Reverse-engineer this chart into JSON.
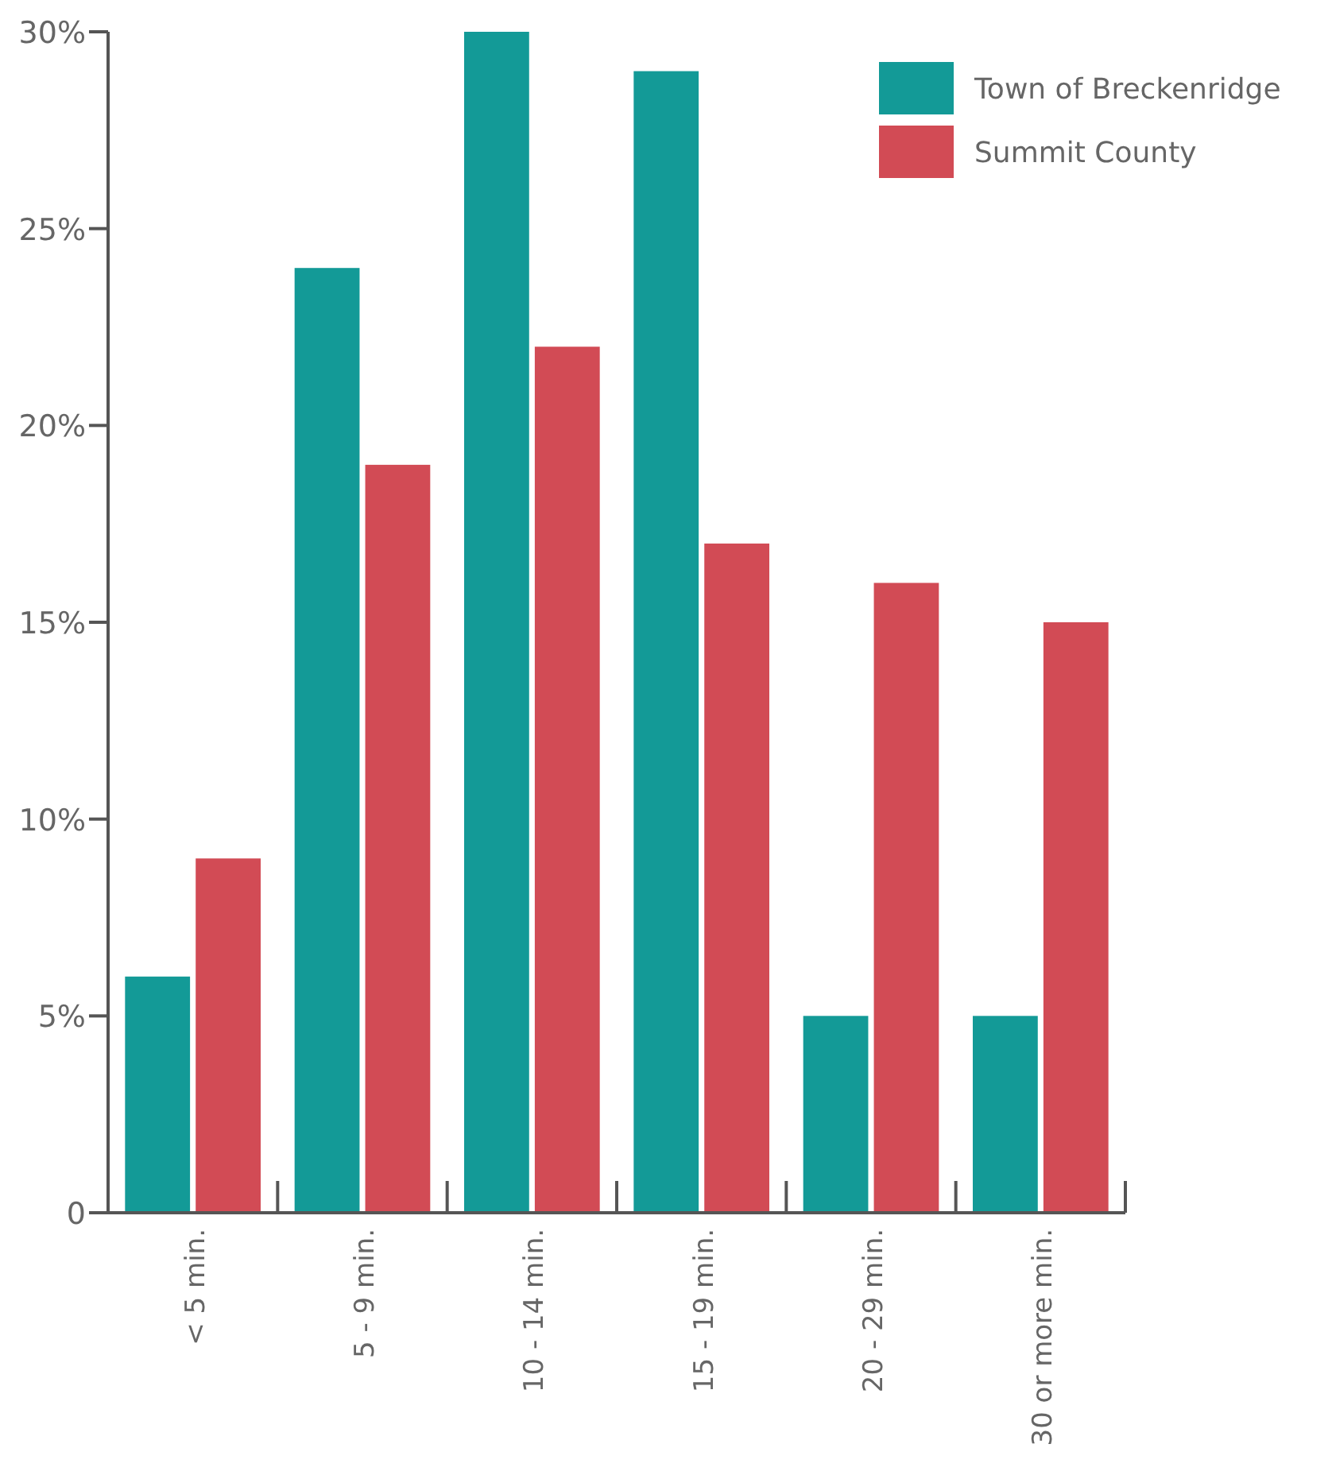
{
  "chart_data": {
    "type": "bar",
    "categories": [
      "< 5 min.",
      "5 - 9 min.",
      "10 - 14 min.",
      "15 - 19 min.",
      "20 - 29 min.",
      "30 or more min."
    ],
    "series": [
      {
        "name": "Town of Breckenridge",
        "color": "#139a97",
        "values": [
          6,
          24,
          30,
          29,
          5,
          5
        ]
      },
      {
        "name": "Summit County",
        "color": "#d24b55",
        "values": [
          9,
          19,
          22,
          17,
          16,
          15
        ]
      }
    ],
    "ylim": [
      0,
      30
    ],
    "yticks": [
      {
        "value": 0,
        "label": "0"
      },
      {
        "value": 5,
        "label": "5%"
      },
      {
        "value": 10,
        "label": "10%"
      },
      {
        "value": 15,
        "label": "15%"
      },
      {
        "value": 20,
        "label": "20%"
      },
      {
        "value": 25,
        "label": "25%"
      },
      {
        "value": 30,
        "label": "30%"
      }
    ],
    "grid": false,
    "legend": "top right"
  }
}
